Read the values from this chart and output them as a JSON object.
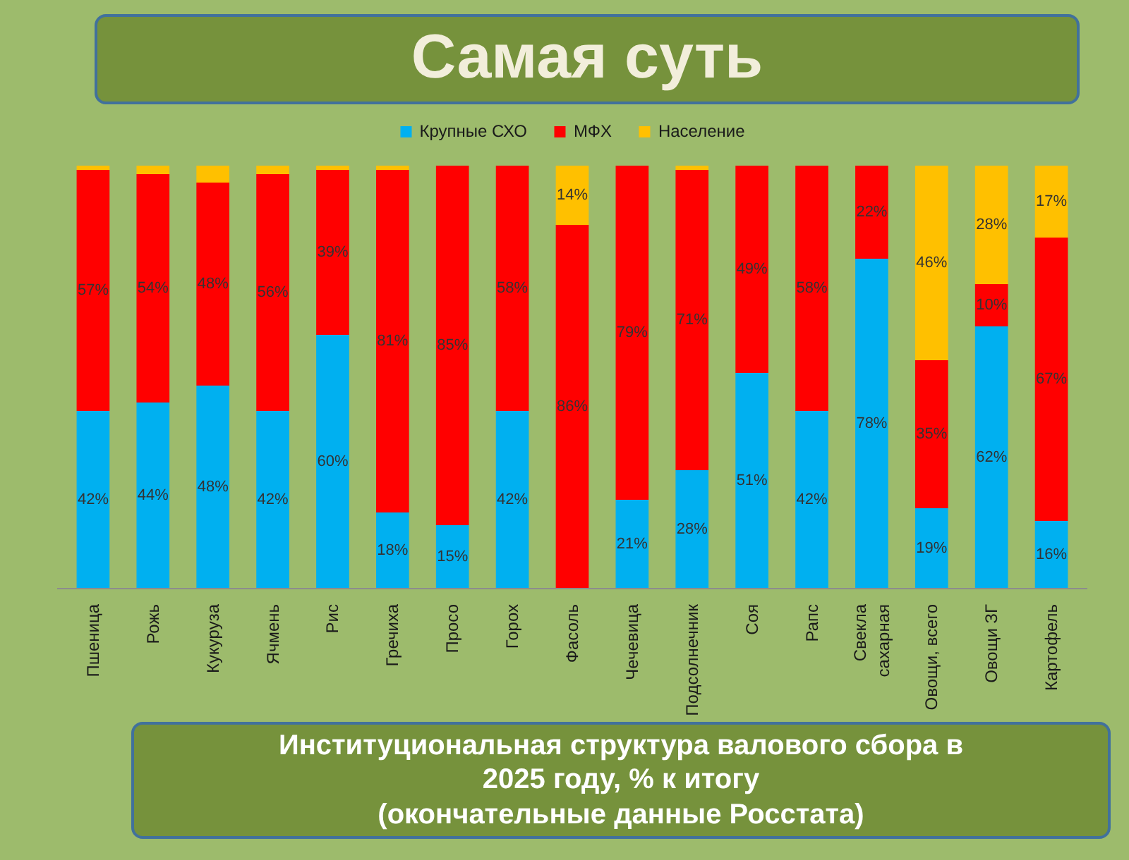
{
  "chart_data": {
    "type": "bar",
    "title": "Самая суть",
    "categories": [
      "Пшеница",
      "Рожь",
      "Кукуруза",
      "Ячмень",
      "Рис",
      "Гречиха",
      "Просо",
      "Горох",
      "Фасоль",
      "Чечевица",
      "Подсолнечник",
      "Соя",
      "Рапс",
      "Свекла сахарная",
      "Овощи, всего",
      "Овощи ЗГ",
      "Картофель"
    ],
    "stacked": true,
    "legend": "top",
    "series": [
      {
        "name": "Крупные СХО",
        "color": "#00b0f0",
        "values": [
          42,
          44,
          48,
          42,
          60,
          18,
          15,
          42,
          null,
          21,
          28,
          51,
          42,
          78,
          19,
          62,
          16
        ],
        "value_labels": [
          "42%",
          "44%",
          "48%",
          "42%",
          "60%",
          "18%",
          "15%",
          "42%",
          null,
          "21%",
          "28%",
          "51%",
          "42%",
          "78%",
          "19%",
          "62%",
          "16%"
        ]
      },
      {
        "name": "МФХ",
        "color": "#ff0000",
        "values": [
          57,
          54,
          48,
          56,
          39,
          81,
          85,
          58,
          86,
          79,
          71,
          49,
          58,
          22,
          35,
          10,
          67
        ],
        "value_labels": [
          "57%",
          "54%",
          "48%",
          "56%",
          "39%",
          "81%",
          "85%",
          "58%",
          "86%",
          "79%",
          "71%",
          "49%",
          "58%",
          "22%",
          "35%",
          "10%",
          "67%"
        ]
      },
      {
        "name": "Население",
        "color": "#ffc000",
        "values": [
          1,
          2,
          4,
          2,
          1,
          1,
          null,
          null,
          14,
          null,
          1,
          null,
          null,
          null,
          46,
          28,
          17
        ],
        "value_labels": [
          null,
          null,
          null,
          null,
          null,
          null,
          null,
          null,
          "14%",
          null,
          null,
          null,
          null,
          null,
          "46%",
          "28%",
          "17%"
        ]
      }
    ],
    "annotations": [
      "Институциональная структура валового сбора в\n2025 году, % к итогу\n(окончательные данные Росстата)"
    ]
  }
}
